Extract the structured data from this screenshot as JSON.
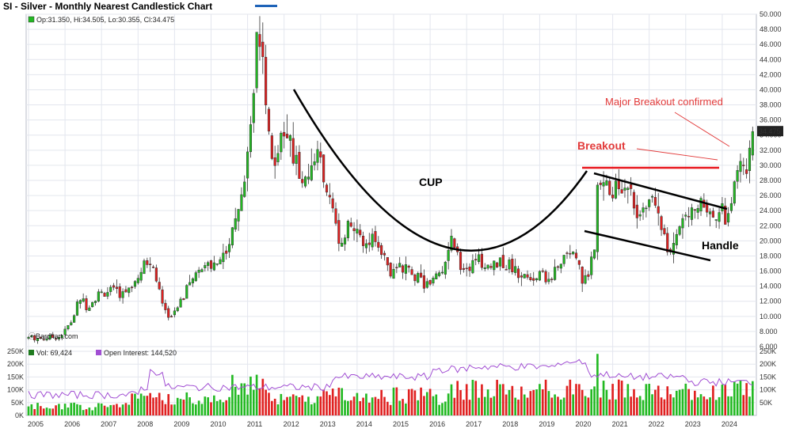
{
  "title": "SI - Silver - Monthly Nearest Candlestick Chart",
  "colors": {
    "up": "#22b922",
    "down": "#e02020",
    "oi": "#a14ed3",
    "grid": "#e3e6ee",
    "pricebox": "#222222"
  },
  "price_legend": "Op:31.350, Hi:34.505, Lo:30.355, Cl:34.475",
  "watermark": "ⓒBarchart.com",
  "volume_legend": {
    "vol": "Vol: 69,424",
    "oi": "Open Interest: 144,520"
  },
  "last_price_label": "34.475",
  "annotations": {
    "cup": "CUP",
    "breakout": "Breakout",
    "major": "Major Breakout confirmed",
    "handle": "Handle"
  },
  "chart_data": [
    {
      "type": "candlestick",
      "title": "SI - Silver - Monthly Nearest Candlestick Chart",
      "ylim": [
        6,
        50
      ],
      "yticks": [
        6,
        8,
        10,
        12,
        14,
        16,
        18,
        20,
        22,
        24,
        26,
        28,
        30,
        32,
        34,
        36,
        38,
        40,
        42,
        44,
        46,
        48,
        50
      ],
      "ytick_labels": [
        "6.000",
        "8.000",
        "10.000",
        "12.000",
        "14.000",
        "16.000",
        "18.000",
        "20.000",
        "22.000",
        "24.000",
        "26.000",
        "28.000",
        "30.000",
        "32.000",
        "34.000",
        "36.000",
        "38.000",
        "40.000",
        "42.000",
        "44.000",
        "46.000",
        "48.000",
        "50.000"
      ],
      "x_labels": [
        "2005",
        "2006",
        "2007",
        "2008",
        "2009",
        "2010",
        "2011",
        "2012",
        "2013",
        "2014",
        "2015",
        "2016",
        "2017",
        "2018",
        "2019",
        "2020",
        "2021",
        "2022",
        "2023",
        "2024"
      ],
      "x_range": [
        2005.0,
        2025.0
      ],
      "approx_close_path": [
        [
          2005.0,
          7.2
        ],
        [
          2005.4,
          7.1
        ],
        [
          2005.9,
          7.4
        ],
        [
          2006.2,
          9.5
        ],
        [
          2006.4,
          12.5
        ],
        [
          2006.6,
          11.3
        ],
        [
          2006.9,
          12.9
        ],
        [
          2007.2,
          13.4
        ],
        [
          2007.6,
          12.9
        ],
        [
          2007.9,
          14.6
        ],
        [
          2008.2,
          17.9
        ],
        [
          2008.4,
          17.0
        ],
        [
          2008.6,
          13.0
        ],
        [
          2008.8,
          9.8
        ],
        [
          2009.0,
          10.9
        ],
        [
          2009.4,
          14.0
        ],
        [
          2009.8,
          17.2
        ],
        [
          2010.0,
          16.4
        ],
        [
          2010.4,
          18.2
        ],
        [
          2010.8,
          26.2
        ],
        [
          2010.99,
          30.6
        ],
        [
          2011.3,
          48.6
        ],
        [
          2011.7,
          30.4
        ],
        [
          2011.9,
          33.9
        ],
        [
          2012.2,
          32.2
        ],
        [
          2012.5,
          28.2
        ],
        [
          2012.9,
          32.4
        ],
        [
          2013.3,
          24.3
        ],
        [
          2013.5,
          19.7
        ],
        [
          2013.8,
          22.5
        ],
        [
          2014.1,
          19.8
        ],
        [
          2014.5,
          20.7
        ],
        [
          2014.9,
          15.7
        ],
        [
          2015.3,
          16.6
        ],
        [
          2015.6,
          15.3
        ],
        [
          2015.99,
          13.8
        ],
        [
          2016.3,
          16.0
        ],
        [
          2016.6,
          19.9
        ],
        [
          2016.9,
          16.2
        ],
        [
          2017.3,
          17.4
        ],
        [
          2017.6,
          16.9
        ],
        [
          2017.99,
          17.1
        ],
        [
          2018.3,
          16.5
        ],
        [
          2018.7,
          14.4
        ],
        [
          2018.99,
          15.5
        ],
        [
          2019.3,
          14.8
        ],
        [
          2019.7,
          18.2
        ],
        [
          2019.99,
          17.9
        ],
        [
          2020.2,
          14.0
        ],
        [
          2020.5,
          18.4
        ],
        [
          2020.6,
          28.3
        ],
        [
          2020.99,
          26.4
        ],
        [
          2021.1,
          27.0
        ],
        [
          2021.5,
          25.8
        ],
        [
          2021.8,
          23.0
        ],
        [
          2022.1,
          25.2
        ],
        [
          2022.4,
          20.5
        ],
        [
          2022.6,
          18.0
        ],
        [
          2022.9,
          23.9
        ],
        [
          2023.1,
          22.5
        ],
        [
          2023.3,
          25.2
        ],
        [
          2023.6,
          24.7
        ],
        [
          2023.8,
          22.9
        ],
        [
          2023.99,
          23.9
        ],
        [
          2024.1,
          22.5
        ],
        [
          2024.3,
          26.5
        ],
        [
          2024.5,
          30.0
        ],
        [
          2024.7,
          29.2
        ],
        [
          2024.83,
          34.475
        ]
      ]
    },
    {
      "type": "bar",
      "title": "Volume / Open Interest",
      "ylim": [
        0,
        250000
      ],
      "yticks": [
        0,
        50000,
        100000,
        150000,
        200000,
        250000
      ],
      "ytick_labels_left": [
        "0K",
        "50K",
        "100K",
        "150K",
        "200K",
        "250K"
      ],
      "ytick_labels_right": [
        "50K",
        "100K",
        "150K",
        "200K",
        "250K"
      ],
      "series": [
        {
          "name": "Vol: 69,424",
          "approx_range": [
            10000,
            150000
          ],
          "peak": [
            2020.6,
            240000
          ]
        },
        {
          "name": "Open Interest: 144,520",
          "approx_range": [
            60000,
            230000
          ]
        }
      ]
    }
  ]
}
